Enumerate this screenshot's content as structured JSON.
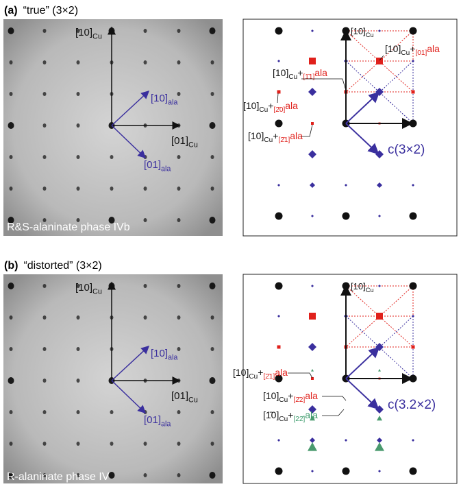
{
  "panels": [
    {
      "label": "(a)",
      "title": "“true” (3×2)",
      "image_caption": "R&S-alaninate phase IVb",
      "image_vectors": [
        {
          "parts": [
            "[10]",
            "Cu"
          ],
          "color": "#111111"
        },
        {
          "parts": [
            "[01]",
            "Cu"
          ],
          "color": "#111111"
        },
        {
          "parts": [
            "[10]",
            "ala"
          ],
          "color": "#3a2f9e"
        },
        {
          "parts": [
            "[01]",
            "ala"
          ],
          "color": "#3a2f9e"
        }
      ],
      "schematic_labels": [
        {
          "parts": [
            "[10]",
            "Cu"
          ],
          "color": "#111111"
        },
        {
          "parts": [
            "[10]",
            "Cu",
            "+",
            "[01]",
            "ala"
          ],
          "color": "#e0201b"
        },
        {
          "parts": [
            "[10]",
            "Cu",
            "+",
            "[1̄1]",
            "ala"
          ],
          "color": "#e0201b"
        },
        {
          "parts": [
            "[10]",
            "Cu",
            "+",
            "[2̄0]",
            "ala"
          ],
          "color": "#e0201b"
        },
        {
          "parts": [
            "[10]",
            "Cu",
            "+",
            "[2̄1]",
            "ala"
          ],
          "color": "#e0201b"
        }
      ],
      "cell": "c(3×2)"
    },
    {
      "label": "(b)",
      "title": "“distorted” (3×2)",
      "image_caption": "R-alaninate phase IV",
      "image_vectors": [
        {
          "parts": [
            "[10]",
            "Cu"
          ],
          "color": "#111111"
        },
        {
          "parts": [
            "[01]",
            "Cu"
          ],
          "color": "#111111"
        },
        {
          "parts": [
            "[10]",
            "ala"
          ],
          "color": "#3a2f9e"
        },
        {
          "parts": [
            "[01]",
            "ala"
          ],
          "color": "#3a2f9e"
        }
      ],
      "schematic_labels": [
        {
          "parts": [
            "[10]",
            "Cu"
          ],
          "color": "#111111"
        },
        {
          "parts": [
            "[10]",
            "Cu",
            "+",
            "[2̄1]",
            "ala"
          ],
          "color": "#e0201b"
        },
        {
          "parts": [
            "[10]",
            "Cu",
            "+",
            "[2̄2]",
            "ala"
          ],
          "color": "#e0201b"
        },
        {
          "parts": [
            "[1̄0]",
            "Cu",
            "+",
            "[22̄]",
            "ala"
          ],
          "color": "#3a9a6a"
        }
      ],
      "cell": "c(3.2×2)"
    }
  ]
}
